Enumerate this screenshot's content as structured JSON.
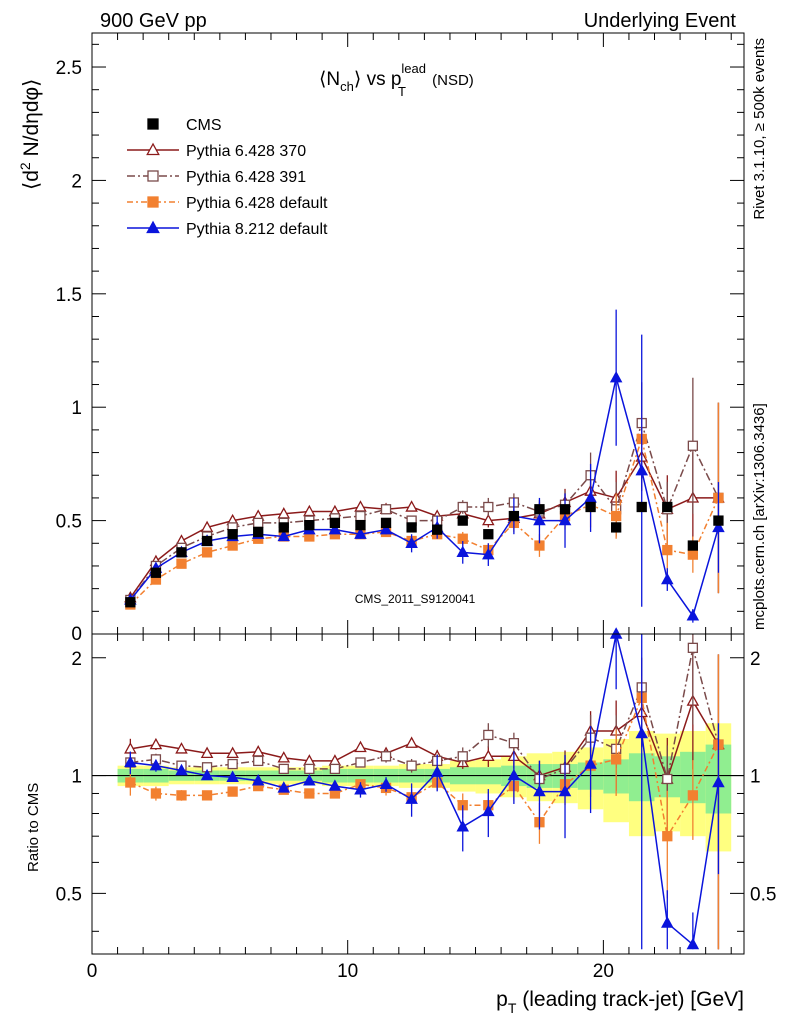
{
  "header": {
    "left": "900 GeV pp",
    "right": "Underlying Event",
    "side_top": "Rivet 3.1.10, ≥ 500k events",
    "side_bottom": "mcplots.cern.ch [arXiv:1306.3436]"
  },
  "chart_data": {
    "type": "scatter",
    "title": "<N_ch> vs p_T^lead (NSD)",
    "title_parts": {
      "a": "⟨N",
      "a_sub": "ch",
      "b": "⟩ vs p",
      "b_sup": "lead",
      "b_sub": "T",
      "c": " (NSD)"
    },
    "watermark": "CMS_2011_S9120041",
    "ylabel": "⟨d² N/dηdφ⟩",
    "ylabel_parts": {
      "a": "⟨d",
      "sup": "2",
      "b": " N/dηdφ⟩"
    },
    "ratio_ylabel": "Ratio to CMS",
    "xlabel": "p_T (leading track-jet) [GeV]",
    "xlabel_parts": {
      "a": "p",
      "sub": "T",
      "b": " (leading track-jet) [GeV]"
    },
    "xlim": [
      0,
      25.5
    ],
    "ylim": [
      0,
      2.65
    ],
    "ratio_ylim": [
      0.35,
      2.3
    ],
    "x_ticks": [
      "0",
      "10",
      "20"
    ],
    "y_ticks": [
      "0.5",
      "1",
      "1.5",
      "2",
      "2.5"
    ],
    "y_tick_values": [
      0.5,
      1,
      1.5,
      2,
      2.5
    ],
    "y_zero_label": "0",
    "ratio_ticks": [
      "0.5",
      "1",
      "2"
    ],
    "ratio_tick_values": [
      0.5,
      1,
      2
    ],
    "x": [
      1.5,
      2.5,
      3.5,
      4.5,
      5.5,
      6.5,
      7.5,
      8.5,
      9.5,
      10.5,
      11.5,
      12.5,
      13.5,
      14.5,
      15.5,
      16.5,
      17.5,
      18.5,
      19.5,
      20.5,
      21.5,
      22.5,
      23.5,
      24.5
    ],
    "cms": {
      "name": "CMS",
      "values": [
        0.14,
        0.27,
        0.36,
        0.41,
        0.44,
        0.45,
        0.47,
        0.48,
        0.49,
        0.48,
        0.49,
        0.47,
        0.46,
        0.5,
        0.44,
        0.52,
        0.55,
        0.55,
        0.56,
        0.47,
        0.56,
        0.56,
        0.39,
        0.5
      ],
      "band_inner": [
        0.04,
        0.04,
        0.03,
        0.03,
        0.03,
        0.03,
        0.03,
        0.03,
        0.04,
        0.04,
        0.04,
        0.04,
        0.04,
        0.05,
        0.05,
        0.06,
        0.07,
        0.07,
        0.08,
        0.1,
        0.14,
        0.12,
        0.15,
        0.2
      ],
      "band_outer": [
        0.06,
        0.06,
        0.05,
        0.05,
        0.05,
        0.05,
        0.05,
        0.05,
        0.06,
        0.06,
        0.06,
        0.07,
        0.07,
        0.09,
        0.1,
        0.12,
        0.14,
        0.15,
        0.18,
        0.24,
        0.3,
        0.28,
        0.3,
        0.36
      ]
    },
    "series": [
      {
        "name": "Pythia 6.428 370",
        "color": "#8b1a1a",
        "marker": "triangle-open",
        "dash": "",
        "values": [
          0.16,
          0.32,
          0.41,
          0.47,
          0.5,
          0.52,
          0.53,
          0.54,
          0.54,
          0.56,
          0.55,
          0.56,
          0.52,
          0.53,
          0.5,
          0.51,
          0.53,
          0.58,
          0.63,
          0.6,
          0.78,
          0.55,
          0.6,
          0.6
        ],
        "errors": [
          0.01,
          0.01,
          0.01,
          0.01,
          0.01,
          0.01,
          0.01,
          0.01,
          0.01,
          0.01,
          0.01,
          0.01,
          0.02,
          0.02,
          0.03,
          0.04,
          0.05,
          0.06,
          0.09,
          0.12,
          0.15,
          0.15,
          0.2,
          0.42
        ],
        "ratio": [
          1.17,
          1.2,
          1.17,
          1.14,
          1.14,
          1.15,
          1.11,
          1.09,
          1.09,
          1.18,
          1.14,
          1.21,
          1.12,
          1.08,
          1.12,
          1.12,
          1.0,
          1.05,
          1.3,
          1.3,
          1.45,
          0.98,
          1.55,
          1.2
        ]
      },
      {
        "name": "Pythia 6.428 391",
        "color": "#7a4a4a",
        "marker": "square-open",
        "dash": "8,3,2,3",
        "values": [
          0.15,
          0.3,
          0.38,
          0.43,
          0.47,
          0.49,
          0.49,
          0.5,
          0.51,
          0.52,
          0.55,
          0.5,
          0.5,
          0.56,
          0.56,
          0.58,
          0.54,
          0.57,
          0.7,
          0.55,
          0.93,
          0.55,
          0.83,
          0.6
        ],
        "errors": [
          0.01,
          0.01,
          0.01,
          0.01,
          0.01,
          0.01,
          0.01,
          0.01,
          0.01,
          0.01,
          0.02,
          0.02,
          0.02,
          0.03,
          0.04,
          0.04,
          0.05,
          0.06,
          0.1,
          0.12,
          0.18,
          0.12,
          0.3,
          0.42
        ],
        "ratio": [
          1.08,
          1.1,
          1.06,
          1.05,
          1.07,
          1.09,
          1.04,
          1.04,
          1.04,
          1.08,
          1.12,
          1.06,
          1.09,
          1.12,
          1.27,
          1.21,
          0.98,
          1.04,
          1.25,
          1.17,
          1.68,
          0.98,
          2.12,
          1.2
        ]
      },
      {
        "name": "Pythia 6.428 default",
        "color": "#f28030",
        "marker": "square-filled",
        "dash": "6,3,2,3",
        "values": [
          0.13,
          0.24,
          0.31,
          0.36,
          0.39,
          0.42,
          0.43,
          0.43,
          0.44,
          0.44,
          0.45,
          0.41,
          0.44,
          0.42,
          0.37,
          0.49,
          0.39,
          0.52,
          0.57,
          0.52,
          0.86,
          0.37,
          0.35,
          0.6
        ],
        "errors": [
          0.01,
          0.01,
          0.01,
          0.01,
          0.01,
          0.01,
          0.01,
          0.01,
          0.01,
          0.01,
          0.02,
          0.02,
          0.02,
          0.03,
          0.03,
          0.04,
          0.05,
          0.06,
          0.1,
          0.1,
          0.12,
          0.12,
          0.08,
          0.42
        ],
        "ratio": [
          0.96,
          0.9,
          0.89,
          0.89,
          0.91,
          0.94,
          0.92,
          0.9,
          0.9,
          0.95,
          0.93,
          0.88,
          0.96,
          0.84,
          0.84,
          0.94,
          0.76,
          0.95,
          1.06,
          1.1,
          1.58,
          0.7,
          0.89,
          1.2
        ]
      },
      {
        "name": "Pythia 8.212 default",
        "color": "#0a14dc",
        "marker": "triangle-filled",
        "dash": "",
        "values": [
          0.15,
          0.29,
          0.36,
          0.41,
          0.43,
          0.44,
          0.43,
          0.46,
          0.46,
          0.44,
          0.46,
          0.4,
          0.47,
          0.36,
          0.35,
          0.52,
          0.5,
          0.5,
          0.6,
          1.13,
          0.72,
          0.24,
          0.08,
          0.47
        ],
        "errors": [
          0.01,
          0.01,
          0.01,
          0.01,
          0.01,
          0.01,
          0.01,
          0.01,
          0.01,
          0.02,
          0.02,
          0.04,
          0.05,
          0.05,
          0.05,
          0.08,
          0.1,
          0.12,
          0.15,
          0.3,
          0.6,
          0.05,
          0.03,
          0.2
        ],
        "ratio": [
          1.08,
          1.06,
          1.03,
          1.0,
          0.99,
          0.97,
          0.93,
          0.97,
          0.94,
          0.92,
          0.95,
          0.87,
          1.02,
          0.74,
          0.81,
          1.0,
          0.91,
          0.91,
          1.07,
          2.3,
          1.28,
          0.42,
          0.37,
          0.96
        ]
      }
    ],
    "legend_position": "top-left"
  }
}
